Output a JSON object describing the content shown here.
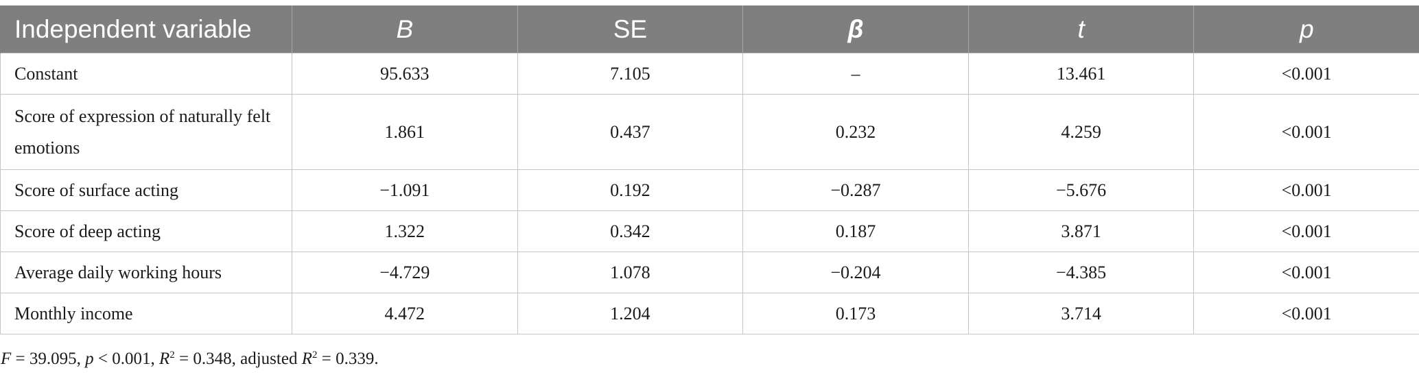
{
  "table": {
    "headers": [
      "Independent variable",
      "B",
      "SE",
      "β",
      "t",
      "p"
    ],
    "rows": [
      {
        "variable": "Constant",
        "B": "95.633",
        "SE": "7.105",
        "beta": "–",
        "t": "13.461",
        "p": "<0.001"
      },
      {
        "variable": "Score of expression of naturally felt emotions",
        "B": "1.861",
        "SE": "0.437",
        "beta": "0.232",
        "t": "4.259",
        "p": "<0.001"
      },
      {
        "variable": "Score of surface acting",
        "B": "−1.091",
        "SE": "0.192",
        "beta": "−0.287",
        "t": "−5.676",
        "p": "<0.001"
      },
      {
        "variable": "Score of deep acting",
        "B": "1.322",
        "SE": "0.342",
        "beta": "0.187",
        "t": "3.871",
        "p": "<0.001"
      },
      {
        "variable": "Average daily working hours",
        "B": "−4.729",
        "SE": "1.078",
        "beta": "−0.204",
        "t": "−4.385",
        "p": "<0.001"
      },
      {
        "variable": "Monthly income",
        "B": "4.472",
        "SE": "1.204",
        "beta": "0.173",
        "t": "3.714",
        "p": "<0.001"
      }
    ]
  },
  "footnote": {
    "f_label": "F",
    "f_text": " = 39.095, ",
    "p_label": "p",
    "p_text": " < 0.001, ",
    "r2_label": "R",
    "r2_sup": "2",
    "r2_text": " = 0.348, adjusted ",
    "adj_r2_label": "R",
    "adj_r2_sup": "2",
    "adj_r2_text": " = 0.339."
  },
  "colors": {
    "header_bg": "#7f7f7f",
    "header_text": "#ffffff",
    "grid_line": "#c4c4c4"
  }
}
